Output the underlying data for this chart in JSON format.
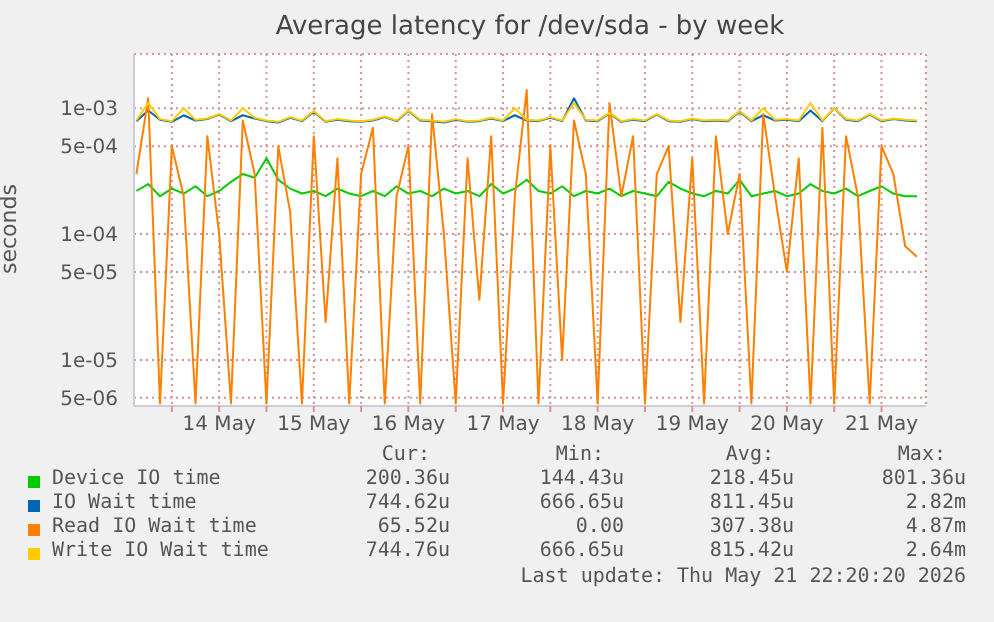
{
  "chart_data": {
    "type": "line",
    "title": "Average latency for /dev/sda - by week",
    "ylabel": "seconds",
    "log": true,
    "grid": true,
    "legend": "bottom",
    "marker": "none",
    "line_style": "solid",
    "x": [
      "2026-05-13T15:00",
      "2026-05-13T18:00",
      "2026-05-13T21:00",
      "2026-05-14T00:00",
      "2026-05-14T03:00",
      "2026-05-14T06:00",
      "2026-05-14T09:00",
      "2026-05-14T12:00",
      "2026-05-14T15:00",
      "2026-05-14T18:00",
      "2026-05-14T21:00",
      "2026-05-15T00:00",
      "2026-05-15T03:00",
      "2026-05-15T06:00",
      "2026-05-15T09:00",
      "2026-05-15T12:00",
      "2026-05-15T15:00",
      "2026-05-15T18:00",
      "2026-05-15T21:00",
      "2026-05-16T00:00",
      "2026-05-16T03:00",
      "2026-05-16T06:00",
      "2026-05-16T09:00",
      "2026-05-16T12:00",
      "2026-05-16T15:00",
      "2026-05-16T18:00",
      "2026-05-16T21:00",
      "2026-05-17T00:00",
      "2026-05-17T03:00",
      "2026-05-17T06:00",
      "2026-05-17T09:00",
      "2026-05-17T12:00",
      "2026-05-17T15:00",
      "2026-05-17T18:00",
      "2026-05-17T21:00",
      "2026-05-18T00:00",
      "2026-05-18T03:00",
      "2026-05-18T06:00",
      "2026-05-18T09:00",
      "2026-05-18T12:00",
      "2026-05-18T15:00",
      "2026-05-18T18:00",
      "2026-05-18T21:00",
      "2026-05-19T00:00",
      "2026-05-19T03:00",
      "2026-05-19T06:00",
      "2026-05-19T09:00",
      "2026-05-19T12:00",
      "2026-05-19T15:00",
      "2026-05-19T18:00",
      "2026-05-19T21:00",
      "2026-05-20T00:00",
      "2026-05-20T03:00",
      "2026-05-20T06:00",
      "2026-05-20T09:00",
      "2026-05-20T12:00",
      "2026-05-20T15:00",
      "2026-05-20T18:00",
      "2026-05-20T21:00",
      "2026-05-21T00:00",
      "2026-05-21T03:00",
      "2026-05-21T06:00",
      "2026-05-21T09:00",
      "2026-05-21T12:00",
      "2026-05-21T15:00",
      "2026-05-21T18:00",
      "2026-05-21T21:00"
    ],
    "xlim": [
      "2026-05-13T14:24",
      "2026-05-21T23:17"
    ],
    "xticks": [
      {
        "value": "2026-05-14T00:00",
        "label": null
      },
      {
        "value": "2026-05-14T12:00",
        "label": "14 May"
      },
      {
        "value": "2026-05-15T00:00",
        "label": null
      },
      {
        "value": "2026-05-15T12:00",
        "label": "15 May"
      },
      {
        "value": "2026-05-16T00:00",
        "label": null
      },
      {
        "value": "2026-05-16T12:00",
        "label": "16 May"
      },
      {
        "value": "2026-05-17T00:00",
        "label": null
      },
      {
        "value": "2026-05-17T12:00",
        "label": "17 May"
      },
      {
        "value": "2026-05-18T00:00",
        "label": null
      },
      {
        "value": "2026-05-18T12:00",
        "label": "18 May"
      },
      {
        "value": "2026-05-19T00:00",
        "label": null
      },
      {
        "value": "2026-05-19T12:00",
        "label": "19 May"
      },
      {
        "value": "2026-05-20T00:00",
        "label": null
      },
      {
        "value": "2026-05-20T12:00",
        "label": "20 May"
      },
      {
        "value": "2026-05-21T00:00",
        "label": null
      },
      {
        "value": "2026-05-21T12:00",
        "label": "21 May"
      }
    ],
    "ylim": [
      4.3e-06,
      0.0027
    ],
    "yticks": [
      {
        "value": 5e-06,
        "label": "5e-06"
      },
      {
        "value": 1e-05,
        "label": "1e-05"
      },
      {
        "value": 5e-05,
        "label": "5e-05"
      },
      {
        "value": 0.0001,
        "label": "1e-04"
      },
      {
        "value": 0.0005,
        "label": "5e-04"
      },
      {
        "value": 0.001,
        "label": "1e-03"
      }
    ],
    "series": [
      {
        "name": "Device IO time",
        "color": "#00cc00",
        "values": [
          0.00022,
          0.00025,
          0.0002,
          0.00023,
          0.00021,
          0.00024,
          0.0002,
          0.00022,
          0.00026,
          0.0003,
          0.00028,
          0.0004,
          0.00027,
          0.00023,
          0.00021,
          0.00022,
          0.0002,
          0.00023,
          0.00021,
          0.0002,
          0.00022,
          0.0002,
          0.00024,
          0.00021,
          0.00022,
          0.0002,
          0.00023,
          0.00021,
          0.00022,
          0.0002,
          0.00025,
          0.00021,
          0.00023,
          0.00027,
          0.00022,
          0.00021,
          0.00024,
          0.0002,
          0.00022,
          0.00021,
          0.00023,
          0.0002,
          0.00022,
          0.00021,
          0.0002,
          0.00026,
          0.00023,
          0.00021,
          0.0002,
          0.00022,
          0.00021,
          0.00027,
          0.0002,
          0.00021,
          0.00022,
          0.0002,
          0.00021,
          0.00025,
          0.00022,
          0.00021,
          0.00023,
          0.0002,
          0.00022,
          0.00024,
          0.00021,
          0.0002,
          0.0002
        ]
      },
      {
        "name": "IO Wait time",
        "color": "#0066b3",
        "values": [
          0.00079,
          0.00096,
          0.00081,
          0.00078,
          0.00088,
          0.0008,
          0.00082,
          0.00089,
          0.00079,
          0.00088,
          0.00083,
          0.00079,
          0.00077,
          0.00084,
          0.00079,
          0.00094,
          0.00078,
          0.00081,
          0.00079,
          0.00078,
          0.0008,
          0.00085,
          0.00079,
          0.00095,
          0.0008,
          0.00079,
          0.00077,
          0.00081,
          0.00078,
          0.00079,
          0.00083,
          0.00079,
          0.00088,
          0.0008,
          0.00079,
          0.00084,
          0.00079,
          0.0012,
          0.0008,
          0.00079,
          0.00091,
          0.00078,
          0.00081,
          0.00079,
          0.00089,
          0.00079,
          0.00078,
          0.00082,
          0.00079,
          0.0008,
          0.00079,
          0.00094,
          0.00079,
          0.00088,
          0.0008,
          0.00081,
          0.00079,
          0.00096,
          0.00079,
          0.001,
          0.00081,
          0.00079,
          0.00089,
          0.00079,
          0.00082,
          0.0008,
          0.00079
        ]
      },
      {
        "name": "Read IO Wait time",
        "color": "#ff8000",
        "values": [
          0.0003,
          0.0012,
          4.5e-06,
          0.0005,
          0.0002,
          4.5e-06,
          0.0006,
          0.0001,
          4.5e-06,
          0.0008,
          0.0003,
          4.5e-06,
          0.0005,
          0.00015,
          4.5e-06,
          0.0006,
          2e-05,
          0.0004,
          4.5e-06,
          0.0003,
          0.0007,
          4.5e-06,
          0.0002,
          0.0005,
          4.5e-06,
          0.0009,
          0.0001,
          4.5e-06,
          0.0004,
          3e-05,
          0.0006,
          4.5e-06,
          0.0002,
          0.0014,
          4.5e-06,
          0.0005,
          1e-05,
          0.0008,
          0.0003,
          4.5e-06,
          0.0011,
          0.0002,
          0.0006,
          4.5e-06,
          0.0003,
          0.0005,
          2e-05,
          0.0004,
          4.5e-06,
          0.0006,
          0.0001,
          0.0003,
          4.5e-06,
          0.0009,
          0.0002,
          5e-05,
          0.0004,
          4.5e-06,
          0.0007,
          4.5e-06,
          0.0006,
          0.0002,
          4.5e-06,
          0.0005,
          0.0003,
          8e-05,
          6.6e-05
        ]
      },
      {
        "name": "Write IO Wait time",
        "color": "#ffcc00",
        "values": [
          0.0008,
          0.0011,
          0.00082,
          0.00079,
          0.001,
          0.00081,
          0.00083,
          0.0009,
          0.0008,
          0.001,
          0.00084,
          0.0008,
          0.00078,
          0.00085,
          0.0008,
          0.00095,
          0.00079,
          0.00082,
          0.0008,
          0.00079,
          0.00081,
          0.00086,
          0.0008,
          0.00096,
          0.00081,
          0.0008,
          0.00078,
          0.00082,
          0.00079,
          0.0008,
          0.00084,
          0.0008,
          0.001,
          0.00081,
          0.0008,
          0.00085,
          0.0008,
          0.0011,
          0.00081,
          0.0008,
          0.00092,
          0.00079,
          0.00082,
          0.0008,
          0.0009,
          0.0008,
          0.00079,
          0.00083,
          0.0008,
          0.00081,
          0.0008,
          0.00095,
          0.0008,
          0.001,
          0.00081,
          0.00082,
          0.0008,
          0.0011,
          0.0008,
          0.001,
          0.00082,
          0.0008,
          0.0009,
          0.0008,
          0.00083,
          0.00081,
          0.0008
        ]
      }
    ],
    "annotations": [
      "Cur:",
      "Min:",
      "Avg:",
      "Max:",
      "200.36u",
      "144.43u",
      "218.45u",
      "801.36u",
      "744.62u",
      "666.65u",
      "811.45u",
      "2.82m",
      "65.52u",
      "0.00",
      "307.38u",
      "4.87m",
      "744.76u",
      "666.65u",
      "815.42u",
      "2.64m",
      "Last update: Thu May 21 22:20:20 2026"
    ]
  }
}
